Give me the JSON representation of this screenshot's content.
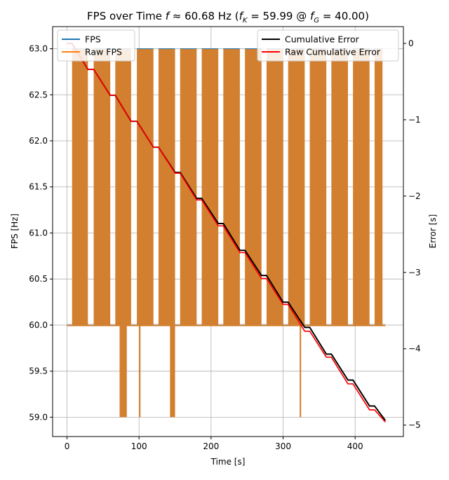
{
  "chart_data": {
    "type": "line",
    "title": "FPS over Time f ≈ 60.68 Hz (f_K = 59.99 @ f_G = 40.00)",
    "title_parts": {
      "prefix": "FPS over Time ",
      "f": "f",
      "approx": " ≈ 60.68 Hz (",
      "fK_base": "f",
      "fK_sub": "K",
      "fK_rest": " = 59.99 @ ",
      "fG_base": "f",
      "fG_sub": "G",
      "fG_rest": " = 40.00)"
    },
    "xlabel": "Time [s]",
    "ylabel_left": "FPS [Hz]",
    "ylabel_right": "Error [s]",
    "xlim": [
      -20,
      467
    ],
    "ylim_left": [
      58.79,
      63.24
    ],
    "ylim_right": [
      -5.15,
      0.22
    ],
    "x_ticks": [
      0,
      100,
      200,
      300,
      400
    ],
    "x_tick_labels": [
      "0",
      "100",
      "200",
      "300",
      "400"
    ],
    "y_left_ticks": [
      59.0,
      59.5,
      60.0,
      60.5,
      61.0,
      61.5,
      62.0,
      62.5,
      63.0
    ],
    "y_left_tick_labels": [
      "59.0",
      "59.5",
      "60.0",
      "60.5",
      "61.0",
      "61.5",
      "62.0",
      "62.5",
      "63.0"
    ],
    "y_right_ticks": [
      -5,
      -4,
      -3,
      -2,
      -1,
      0
    ],
    "y_right_tick_labels": [
      "−5",
      "−4",
      "−3",
      "−2",
      "−1",
      "0"
    ],
    "grid": true,
    "legend_left": {
      "placement": "top-left",
      "entries": [
        {
          "name": "FPS",
          "color": "#1f77b4"
        },
        {
          "name": "Raw FPS",
          "color": "#ff7f0e"
        }
      ]
    },
    "legend_right": {
      "placement": "top-right",
      "entries": [
        {
          "name": "Cumulative Error",
          "color": "#000000"
        },
        {
          "name": "Raw Cumulative Error",
          "color": "#ff0000"
        }
      ]
    },
    "fps_bands": {
      "series": [
        "FPS",
        "Raw FPS"
      ],
      "color": "#d37f30",
      "low": 60.0,
      "high": 63.0,
      "intervals": [
        [
          7,
          29
        ],
        [
          37,
          60
        ],
        [
          67,
          89
        ],
        [
          97,
          120
        ],
        [
          127,
          150
        ],
        [
          157,
          180
        ],
        [
          187,
          210
        ],
        [
          217,
          240
        ],
        [
          247,
          270
        ],
        [
          277,
          300
        ],
        [
          307,
          330
        ],
        [
          337,
          360
        ],
        [
          367,
          390
        ],
        [
          397,
          420
        ],
        [
          427,
          438
        ]
      ]
    },
    "fps_dips": {
      "low": 59.0,
      "high": 60.0,
      "intervals": [
        [
          73,
          83
        ],
        [
          100,
          102
        ],
        [
          143,
          150
        ],
        [
          323,
          325
        ]
      ]
    },
    "cumulative_error": {
      "name": "Cumulative Error",
      "color": "#000000",
      "x": [
        0,
        7,
        29,
        37,
        60,
        67,
        89,
        97,
        120,
        127,
        150,
        157,
        180,
        187,
        210,
        217,
        240,
        247,
        270,
        277,
        300,
        307,
        330,
        337,
        360,
        367,
        390,
        397,
        420,
        427,
        442
      ],
      "y": [
        0,
        0,
        -0.34,
        -0.34,
        -0.68,
        -0.68,
        -1.02,
        -1.02,
        -1.36,
        -1.36,
        -1.69,
        -1.69,
        -2.03,
        -2.03,
        -2.36,
        -2.36,
        -2.71,
        -2.71,
        -3.04,
        -3.04,
        -3.39,
        -3.39,
        -3.72,
        -3.72,
        -4.07,
        -4.07,
        -4.41,
        -4.41,
        -4.75,
        -4.75,
        -4.94
      ]
    },
    "raw_cumulative_error": {
      "name": "Raw Cumulative Error",
      "color": "#ff0000",
      "x": [
        0,
        7,
        29,
        37,
        60,
        67,
        89,
        97,
        120,
        127,
        150,
        157,
        180,
        187,
        210,
        217,
        240,
        247,
        270,
        277,
        300,
        307,
        330,
        337,
        360,
        367,
        390,
        397,
        420,
        427,
        442
      ],
      "y": [
        0,
        0,
        -0.34,
        -0.34,
        -0.68,
        -0.68,
        -1.02,
        -1.02,
        -1.36,
        -1.36,
        -1.7,
        -1.7,
        -2.05,
        -2.05,
        -2.39,
        -2.39,
        -2.74,
        -2.74,
        -3.08,
        -3.08,
        -3.42,
        -3.42,
        -3.77,
        -3.77,
        -4.11,
        -4.11,
        -4.46,
        -4.46,
        -4.8,
        -4.8,
        -4.96
      ]
    }
  }
}
